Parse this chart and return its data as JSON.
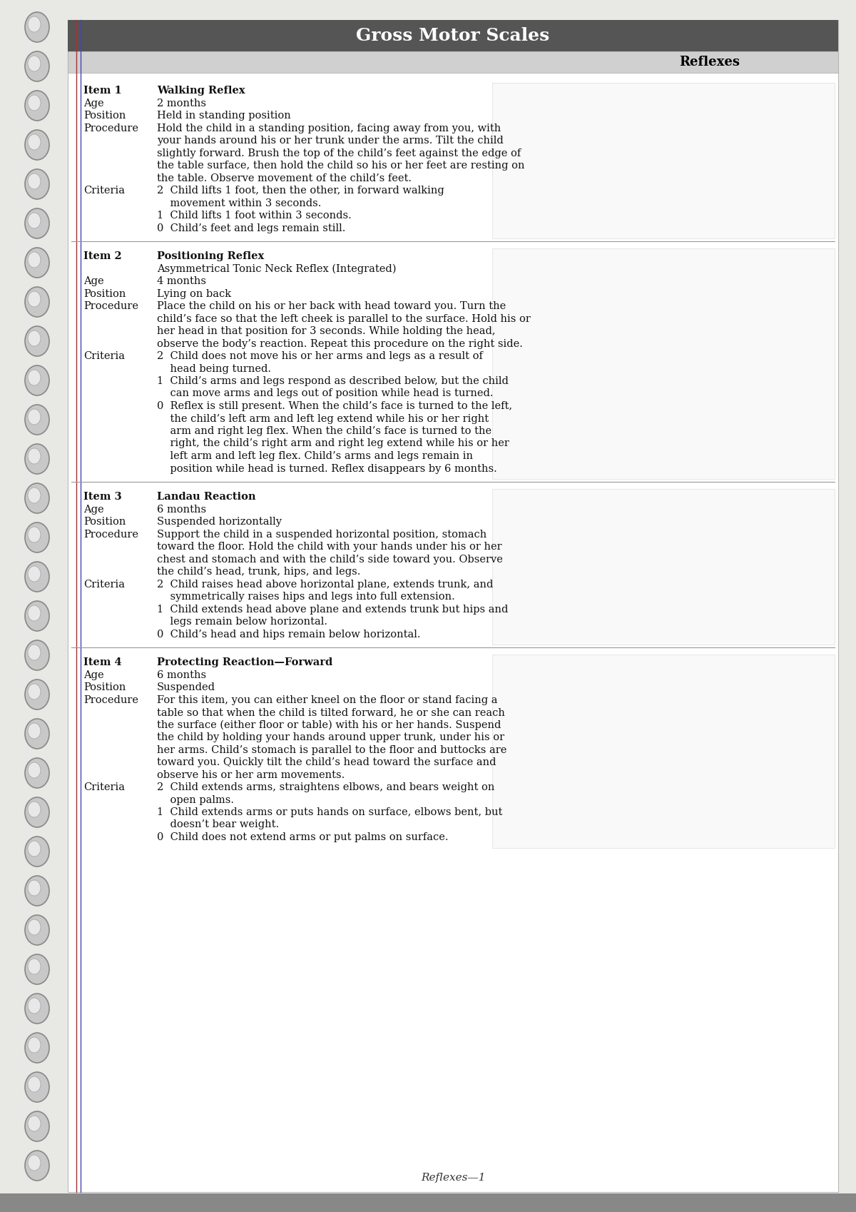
{
  "page_bg": "#e8e8e4",
  "content_bg": "#ffffff",
  "header_bg": "#555555",
  "header_text": "Gross Motor Scales",
  "header_text_color": "#ffffff",
  "subheader_bg": "#d0d0d0",
  "subheader_text": "Reflexes",
  "subheader_text_color": "#000000",
  "footer_text": "Reflexes—1",
  "spiral_color": "#aaaaaa",
  "line_red": "#cc0000",
  "line_blue": "#3333cc",
  "separator_color": "#999999",
  "items": [
    {
      "item_label": "Item 1",
      "item_title": "Walking Reflex",
      "age": "2 months",
      "position": "Held in standing position",
      "procedure_lines": [
        "Hold the child in a standing position, facing away from you, with",
        "your hands around his or her trunk under the arms. Tilt the child",
        "slightly forward. Brush the top of the child’s feet against the edge of",
        "the table surface, then hold the child so his or her feet are resting on",
        "the table. Observe movement of the child’s feet."
      ],
      "criteria_lines": [
        [
          "2  Child lifts 1 foot, then the other, in forward walking",
          "    movement within 3 seconds."
        ],
        [
          "1  Child lifts 1 foot within 3 seconds."
        ],
        [
          "0  Child’s feet and legs remain still."
        ]
      ]
    },
    {
      "item_label": "Item 2",
      "item_title": "Positioning Reflex",
      "item_subtitle": "Asymmetrical Tonic Neck Reflex (Integrated)",
      "age": "4 months",
      "position": "Lying on back",
      "procedure_lines": [
        "Place the child on his or her back with head toward you. Turn the",
        "child’s face so that the left cheek is parallel to the surface. Hold his or",
        "her head in that position for 3 seconds. While holding the head,",
        "observe the body’s reaction. Repeat this procedure on the right side."
      ],
      "criteria_lines": [
        [
          "2  Child does not move his or her arms and legs as a result of",
          "    head being turned."
        ],
        [
          "1  Child’s arms and legs respond as described below, but the child",
          "    can move arms and legs out of position while head is turned."
        ],
        [
          "0  Reflex is still present. When the child’s face is turned to the left,",
          "    the child’s left arm and left leg extend while his or her right",
          "    arm and right leg flex. When the child’s face is turned to the",
          "    right, the child’s right arm and right leg extend while his or her",
          "    left arm and left leg flex. Child’s arms and legs remain in",
          "    position while head is turned. Reflex disappears by 6 months."
        ]
      ]
    },
    {
      "item_label": "Item 3",
      "item_title": "Landau Reaction",
      "age": "6 months",
      "position": "Suspended horizontally",
      "procedure_lines": [
        "Support the child in a suspended horizontal position, stomach",
        "toward the floor. Hold the child with your hands under his or her",
        "chest and stomach and with the child’s side toward you. Observe",
        "the child’s head, trunk, hips, and legs."
      ],
      "criteria_lines": [
        [
          "2  Child raises head above horizontal plane, extends trunk, and",
          "    symmetrically raises hips and legs into full extension."
        ],
        [
          "1  Child extends head above plane and extends trunk but hips and",
          "    legs remain below horizontal."
        ],
        [
          "0  Child’s head and hips remain below horizontal."
        ]
      ]
    },
    {
      "item_label": "Item 4",
      "item_title": "Protecting Reaction—Forward",
      "age": "6 months",
      "position": "Suspended",
      "procedure_lines": [
        "For this item, you can either kneel on the floor or stand facing a",
        "table so that when the child is tilted forward, he or she can reach",
        "the surface (either floor or table) with his or her hands. Suspend",
        "the child by holding your hands around upper trunk, under his or",
        "her arms. Child’s stomach is parallel to the floor and buttocks are",
        "toward you. Quickly tilt the child’s head toward the surface and",
        "observe his or her arm movements."
      ],
      "criteria_lines": [
        [
          "2  Child extends arms, straightens elbows, and bears weight on",
          "    open palms."
        ],
        [
          "1  Child extends arms or puts hands on surface, elbows bent, but",
          "    doesn’t bear weight."
        ],
        [
          "0  Child does not extend arms or put palms on surface."
        ]
      ]
    }
  ]
}
